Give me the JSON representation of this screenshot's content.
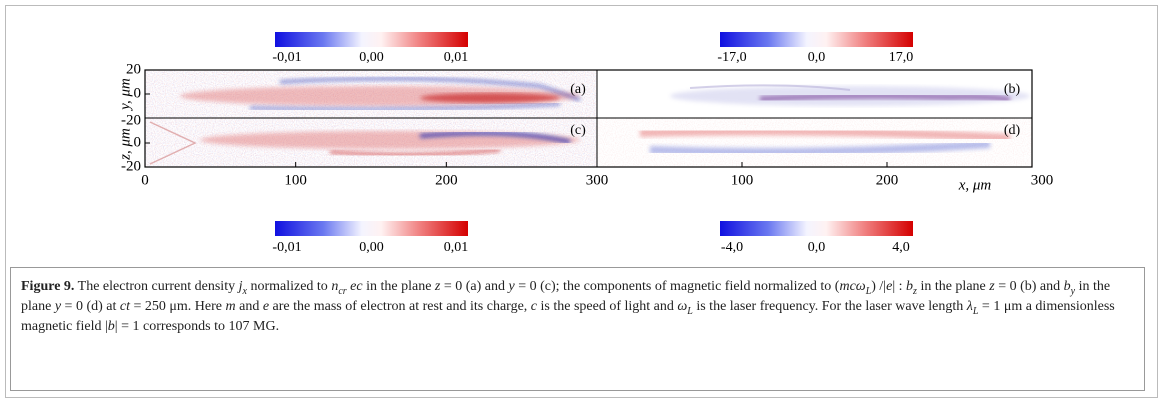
{
  "colorbars": [
    {
      "ticks": [
        "-0,01",
        "0,00",
        "0,01"
      ]
    },
    {
      "ticks": [
        "-17,0",
        "0,0",
        "17,0"
      ]
    },
    {
      "ticks": [
        "-0,01",
        "0,00",
        "0,01"
      ]
    },
    {
      "ticks": [
        "-4,0",
        "0,0",
        "4,0"
      ]
    }
  ],
  "panels": {
    "labels": [
      "(a)",
      "(b)",
      "(c)",
      "(d)"
    ]
  },
  "axes": {
    "y_label_top": "y, μm",
    "y_label_bottom": "z, μm",
    "x_label": "x, μm",
    "y_ticks_top": [
      "20",
      "0",
      "-20"
    ],
    "y_ticks_bottom": [
      "0",
      "-20"
    ],
    "x_ticks_left": [
      "0",
      "100",
      "200",
      "300"
    ],
    "x_ticks_right": [
      "100",
      "200",
      "300"
    ]
  },
  "caption": {
    "label": "Figure 9.",
    "runs": [
      {
        "t": " The electron current density ",
        "s": "n"
      },
      {
        "t": "j",
        "s": "i"
      },
      {
        "t": "x",
        "s": "sub"
      },
      {
        "t": " normalized to ",
        "s": "n"
      },
      {
        "t": "n",
        "s": "i"
      },
      {
        "t": "cr",
        "s": "sub"
      },
      {
        "t": " ec",
        "s": "i"
      },
      {
        "t": " in the plane ",
        "s": "n"
      },
      {
        "t": "z",
        "s": "i"
      },
      {
        "t": " = 0 (a) and ",
        "s": "n"
      },
      {
        "t": "y",
        "s": "i"
      },
      {
        "t": " = 0 (c); the components of magnetic field normalized to (",
        "s": "n"
      },
      {
        "t": "mcω",
        "s": "i"
      },
      {
        "t": "L",
        "s": "sub"
      },
      {
        "t": ") /|",
        "s": "n"
      },
      {
        "t": "e",
        "s": "i"
      },
      {
        "t": "| : ",
        "s": "n"
      },
      {
        "t": "b",
        "s": "i"
      },
      {
        "t": "z",
        "s": "sub"
      },
      {
        "t": " in the plane ",
        "s": "n"
      },
      {
        "t": "z",
        "s": "i"
      },
      {
        "t": " = 0 (b) and ",
        "s": "n"
      },
      {
        "t": "b",
        "s": "i"
      },
      {
        "t": "y",
        "s": "sub"
      },
      {
        "t": "  in the plane ",
        "s": "n"
      },
      {
        "t": "y",
        "s": "i"
      },
      {
        "t": " = 0 (d) at ",
        "s": "n"
      },
      {
        "t": "ct",
        "s": "i"
      },
      {
        "t": " = 250 μm. Here ",
        "s": "n"
      },
      {
        "t": "m",
        "s": "i"
      },
      {
        "t": " and ",
        "s": "n"
      },
      {
        "t": "e",
        "s": "i"
      },
      {
        "t": " are the mass of electron at rest and its charge, ",
        "s": "n"
      },
      {
        "t": "c",
        "s": "i"
      },
      {
        "t": " is the speed of light and ",
        "s": "n"
      },
      {
        "t": "ω",
        "s": "i"
      },
      {
        "t": "L",
        "s": "sub"
      },
      {
        "t": " is the laser frequency. For the laser wave length ",
        "s": "n"
      },
      {
        "t": "λ",
        "s": "i"
      },
      {
        "t": "L",
        "s": "sub"
      },
      {
        "t": " = 1 μm a dimensionless magnetic field |",
        "s": "n"
      },
      {
        "t": "b",
        "s": "i"
      },
      {
        "t": "| = 1 corresponds to 107 MG.",
        "s": "n"
      }
    ]
  }
}
